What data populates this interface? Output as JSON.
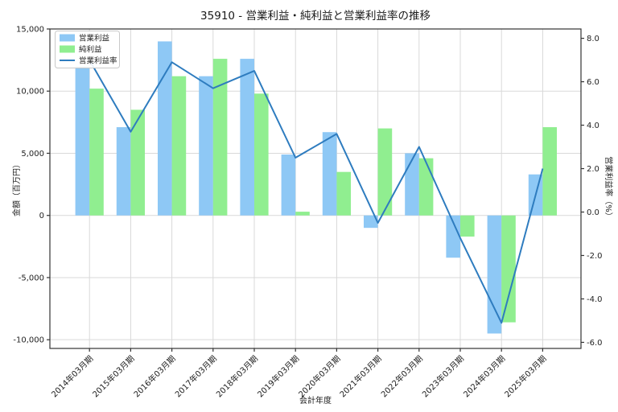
{
  "title": "35910 - 営業利益・純利益と営業利益率の推移",
  "chart_data": {
    "type": "bar",
    "subtype": "grouped-bar-with-line-overlay",
    "categories": [
      "2014年03月期",
      "2015年03月期",
      "2016年03月期",
      "2017年03月期",
      "2018年03月期",
      "2019年03月期",
      "2020年03月期",
      "2021年03月期",
      "2022年03月期",
      "2023年03月期",
      "2024年03月期",
      "2025年03月期"
    ],
    "series": [
      {
        "name": "営業利益",
        "kind": "bar",
        "axis": "left",
        "color": "#8EC8F5",
        "values": [
          12000,
          7100,
          14000,
          11200,
          12600,
          4900,
          6700,
          -1000,
          5000,
          -3400,
          -9500,
          3300
        ]
      },
      {
        "name": "純利益",
        "kind": "bar",
        "axis": "left",
        "color": "#90EE90",
        "values": [
          10200,
          8500,
          11200,
          12600,
          9800,
          300,
          3500,
          7000,
          4600,
          -1700,
          -8600,
          7100
        ]
      },
      {
        "name": "営業利益率",
        "kind": "line",
        "axis": "right",
        "color": "#2E7CBF",
        "values": [
          7.0,
          3.7,
          6.9,
          5.7,
          6.5,
          2.5,
          3.6,
          -0.5,
          3.0,
          -1.2,
          -5.1,
          2.0
        ]
      }
    ],
    "xlabel": "会計年度",
    "ylabel_left": "金額（百万円）",
    "ylabel_right": "営業利益率（%）",
    "left_ticks": [
      {
        "v": 15000,
        "label": "15,000"
      },
      {
        "v": 10000,
        "label": "10,000"
      },
      {
        "v": 5000,
        "label": "5,000"
      },
      {
        "v": 0,
        "label": "0"
      },
      {
        "v": -5000,
        "label": "-5,000"
      },
      {
        "v": -10000,
        "label": "-10,000"
      }
    ],
    "right_ticks": [
      {
        "v": 8,
        "label": "8.0"
      },
      {
        "v": 6,
        "label": "6.0"
      },
      {
        "v": 4,
        "label": "4.0"
      },
      {
        "v": 2,
        "label": "2.0"
      },
      {
        "v": 0,
        "label": "0.0"
      },
      {
        "v": -2,
        "label": "-2.0"
      },
      {
        "v": -4,
        "label": "-4.0"
      },
      {
        "v": -6,
        "label": "-6.0"
      }
    ],
    "ylim_left": [
      -10700,
      15000
    ],
    "ylim_right": [
      -6.28,
      8.43
    ],
    "grid": true,
    "legend_position": "upper-left",
    "colors": {
      "grid": "#d9d9d9",
      "spine": "#333333",
      "legend_border": "#c9c9c9",
      "background": "#ffffff"
    }
  }
}
